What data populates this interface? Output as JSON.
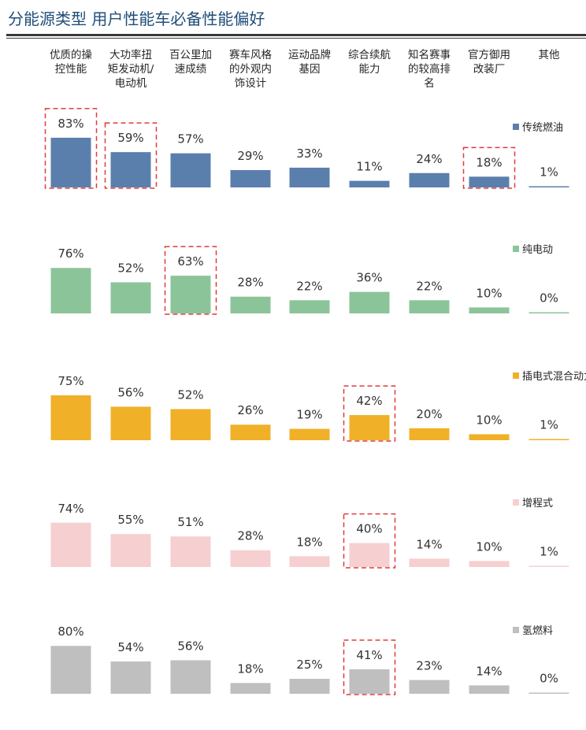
{
  "title": "分能源类型  用户性能车必备性能偏好",
  "chart_data": {
    "type": "bar",
    "categories": [
      [
        "优质的操",
        "控性能"
      ],
      [
        "大功率扭",
        "矩发动机/",
        "电动机"
      ],
      [
        "百公里加",
        "速成绩"
      ],
      [
        "赛车风格",
        "的外观内",
        "饰设计"
      ],
      [
        "运动品牌",
        "基因"
      ],
      [
        "综合续航",
        "能力"
      ],
      [
        "知名赛事",
        "的较高排",
        "名"
      ],
      [
        "官方御用",
        "改装厂"
      ],
      [
        "其他"
      ]
    ],
    "unit": "%",
    "series": [
      {
        "name": "传统燃油",
        "color": "#5b7fad",
        "values": [
          83,
          59,
          57,
          29,
          33,
          11,
          24,
          18,
          1
        ],
        "highlighted": [
          0,
          1,
          7
        ]
      },
      {
        "name": "纯电动",
        "color": "#8cc49a",
        "values": [
          76,
          52,
          63,
          28,
          22,
          36,
          22,
          10,
          0
        ],
        "highlighted": [
          2
        ]
      },
      {
        "name": "插电式混合动力",
        "color": "#f0b129",
        "values": [
          75,
          56,
          52,
          26,
          19,
          42,
          20,
          10,
          1
        ],
        "highlighted": [
          5
        ]
      },
      {
        "name": "增程式",
        "color": "#f6cfd0",
        "values": [
          74,
          55,
          51,
          28,
          18,
          40,
          14,
          10,
          1
        ],
        "highlighted": [
          5
        ]
      },
      {
        "name": "氢燃料",
        "color": "#bfbfbf",
        "values": [
          80,
          54,
          56,
          18,
          25,
          41,
          23,
          14,
          0
        ],
        "highlighted": [
          5
        ]
      }
    ],
    "highlight_color": "#e03a3a"
  }
}
